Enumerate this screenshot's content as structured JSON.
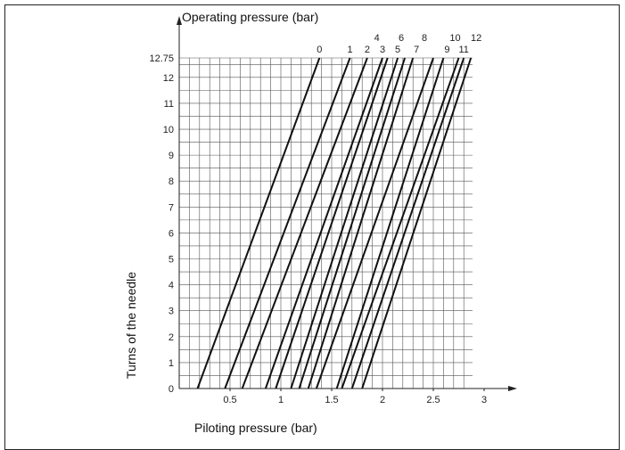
{
  "chart_data": {
    "type": "line",
    "title": "",
    "ylabel_top": "Operating pressure (bar)",
    "ylabel_side": "Turns of the needle",
    "xlabel": "Piloting pressure (bar)",
    "xlim": [
      0,
      3
    ],
    "ylim": [
      0,
      12.75
    ],
    "x_ticks": [
      "0.5",
      "1",
      "1.5",
      "2",
      "2.5",
      "3"
    ],
    "x_tick_values": [
      0.5,
      1,
      1.5,
      2,
      2.5,
      3
    ],
    "y_ticks": [
      "0",
      "1",
      "2",
      "3",
      "4",
      "5",
      "6",
      "7",
      "8",
      "9",
      "10",
      "11",
      "12",
      "12.75"
    ],
    "y_tick_values": [
      0,
      1,
      2,
      3,
      4,
      5,
      6,
      7,
      8,
      9,
      10,
      11,
      12,
      12.75
    ],
    "grid": true,
    "x_grid_step": 0.1,
    "y_grid_step": 0.5,
    "series": [
      {
        "name": "0",
        "x": [
          0.18,
          1.38
        ],
        "y": [
          0,
          12.75
        ]
      },
      {
        "name": "1",
        "x": [
          0.45,
          1.68
        ],
        "y": [
          0,
          12.75
        ]
      },
      {
        "name": "2",
        "x": [
          0.62,
          1.85
        ],
        "y": [
          0,
          12.75
        ]
      },
      {
        "name": "3",
        "x": [
          0.85,
          2.0
        ],
        "y": [
          0,
          12.75
        ]
      },
      {
        "name": "4",
        "x": [
          0.95,
          2.05
        ],
        "y": [
          0,
          12.75
        ]
      },
      {
        "name": "5",
        "x": [
          1.1,
          2.15
        ],
        "y": [
          0,
          12.75
        ]
      },
      {
        "name": "6",
        "x": [
          1.18,
          2.22
        ],
        "y": [
          0,
          12.75
        ]
      },
      {
        "name": "7",
        "x": [
          1.27,
          2.3
        ],
        "y": [
          0,
          12.75
        ]
      },
      {
        "name": "8",
        "x": [
          1.35,
          2.5
        ],
        "y": [
          0,
          12.75
        ]
      },
      {
        "name": "9",
        "x": [
          1.55,
          2.6
        ],
        "y": [
          0,
          12.75
        ]
      },
      {
        "name": "10",
        "x": [
          1.6,
          2.75
        ],
        "y": [
          0,
          12.75
        ]
      },
      {
        "name": "11",
        "x": [
          1.7,
          2.8
        ],
        "y": [
          0,
          12.75
        ]
      },
      {
        "name": "12",
        "x": [
          1.8,
          2.87
        ],
        "y": [
          0,
          12.75
        ]
      }
    ]
  }
}
